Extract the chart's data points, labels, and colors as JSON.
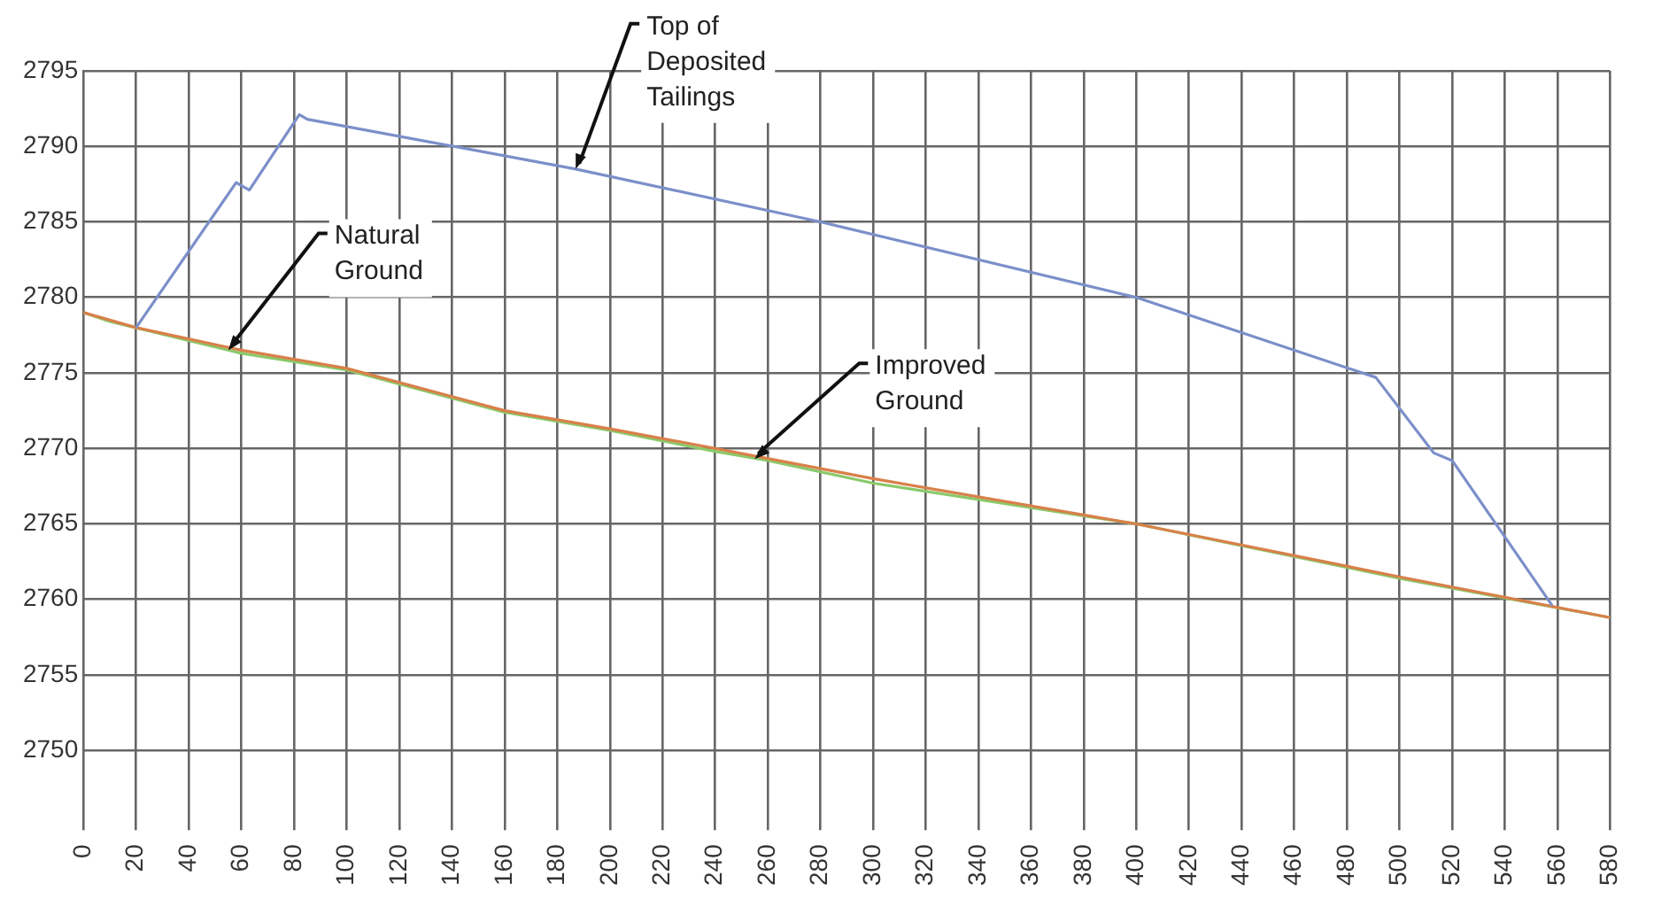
{
  "chart_data": {
    "type": "line",
    "xlim": [
      0,
      580
    ],
    "xticks": [
      0,
      20,
      40,
      60,
      80,
      100,
      120,
      140,
      160,
      180,
      200,
      220,
      240,
      260,
      280,
      300,
      320,
      340,
      360,
      380,
      400,
      420,
      440,
      460,
      480,
      500,
      520,
      540,
      560,
      580
    ],
    "ylim": [
      2750,
      2795
    ],
    "yticks": [
      2750,
      2755,
      2760,
      2765,
      2770,
      2775,
      2780,
      2785,
      2790,
      2795
    ],
    "grid": true,
    "legend": false,
    "marker": "none",
    "line_style": "solid",
    "series": [
      {
        "color": "#7b8fc9",
        "x": [
          20,
          58,
          63,
          82,
          85,
          187,
          280,
          400,
          491,
          513,
          520,
          558
        ],
        "values": [
          2778,
          2787.6,
          2787.1,
          2792.1,
          2791.8,
          2788.5,
          2785,
          2780,
          2774.7,
          2769.7,
          2769.2,
          2759.6
        ]
      },
      {
        "color": "#d9804a",
        "x": [
          0,
          20,
          60,
          100,
          160,
          200,
          240,
          300,
          400,
          500,
          580
        ],
        "values": [
          2779,
          2778,
          2776.5,
          2775.3,
          2772.5,
          2771.3,
          2770,
          2768,
          2765,
          2761.5,
          2758.8
        ]
      },
      {
        "color": "#8ac96a",
        "x": [
          0,
          10,
          60,
          100,
          160,
          200,
          240,
          260,
          300,
          400,
          500,
          580
        ],
        "values": [
          2779,
          2778.4,
          2776.3,
          2775.2,
          2772.4,
          2771.2,
          2769.8,
          2769.2,
          2767.7,
          2765,
          2761.4,
          2758.8
        ]
      }
    ],
    "annotations": [
      {
        "text": "Top of\nDeposited\nTailings",
        "x": 187,
        "y": 2788.5
      },
      {
        "text": "Natural\nGround",
        "x": 55,
        "y": 2776.5
      },
      {
        "text": "Improved\nGround",
        "x": 255,
        "y": 2769.3
      }
    ]
  }
}
